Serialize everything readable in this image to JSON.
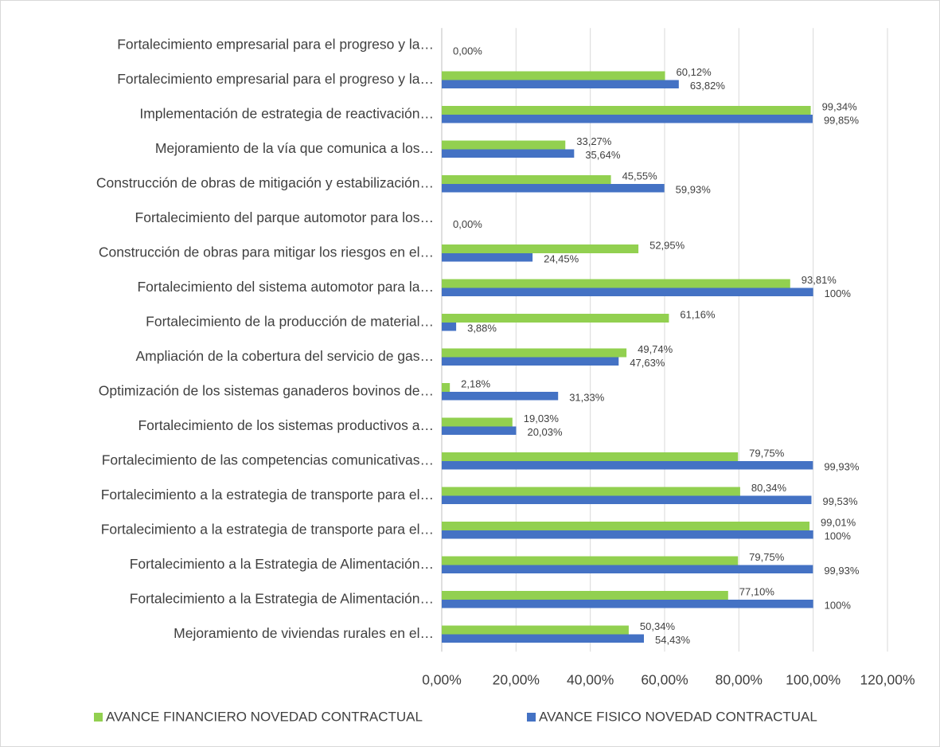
{
  "chart_data": {
    "type": "barh",
    "categories": [
      "Fortalecimiento empresarial para el progreso y la…",
      "Fortalecimiento empresarial para el progreso y la…",
      "Implementación de estrategia de reactivación…",
      "Mejoramiento de la vía que comunica a los…",
      "Construcción de obras de mitigación y estabilización…",
      "Fortalecimiento del parque automotor para los…",
      "Construcción de obras para mitigar los riesgos en el…",
      "Fortalecimiento del sistema automotor para la…",
      "Fortalecimiento de la producción de material…",
      "Ampliación de la cobertura del servicio de gas…",
      "Optimización de los sistemas ganaderos bovinos de…",
      "Fortalecimiento de los sistemas productivos a…",
      "Fortalecimiento de las competencias comunicativas…",
      "Fortalecimiento a la estrategia de transporte para el…",
      "Fortalecimiento a la estrategia de transporte para el…",
      "Fortalecimiento a la Estrategia de Alimentación…",
      "Fortalecimiento a la Estrategia de Alimentación…",
      "Mejoramiento de viviendas rurales en el…"
    ],
    "series": [
      {
        "name": "AVANCE FINANCIERO NOVEDAD CONTRACTUAL",
        "color": "#92d050",
        "values": [
          null,
          60.12,
          99.34,
          33.27,
          45.55,
          null,
          52.95,
          93.81,
          61.16,
          49.74,
          2.18,
          19.03,
          79.75,
          80.34,
          99.01,
          79.75,
          77.1,
          50.34
        ],
        "value_labels": [
          null,
          "60,12%",
          "99,34%",
          "33,27%",
          "45,55%",
          null,
          "52,95%",
          "93,81%",
          "61,16%",
          "49,74%",
          "2,18%",
          "19,03%",
          "79,75%",
          "80,34%",
          "99,01%",
          "79,75%",
          "77,10%",
          "50,34%"
        ]
      },
      {
        "name": "AVANCE FISICO NOVEDAD CONTRACTUAL",
        "color": "#4472c4",
        "values": [
          0,
          63.82,
          99.85,
          35.64,
          59.93,
          0,
          24.45,
          100,
          3.88,
          47.63,
          31.33,
          20.03,
          99.93,
          99.53,
          100,
          99.93,
          100,
          54.43
        ],
        "value_labels": [
          "0,00%",
          "63,82%",
          "99,85%",
          "35,64%",
          "59,93%",
          "0,00%",
          "24,45%",
          "100%",
          "3,88%",
          "47,63%",
          "31,33%",
          "20,03%",
          "99,93%",
          "99,53%",
          "100%",
          "99,93%",
          "100%",
          "54,43%"
        ]
      }
    ],
    "xlim": [
      0,
      120
    ],
    "xticks": [
      {
        "value": 0,
        "label": "0,00%"
      },
      {
        "value": 20,
        "label": "20,00%"
      },
      {
        "value": 40,
        "label": "40,00%"
      },
      {
        "value": 60,
        "label": "60,00%"
      },
      {
        "value": 80,
        "label": "80,00%"
      },
      {
        "value": 100,
        "label": "100,00%"
      },
      {
        "value": 120,
        "label": "120,00%"
      }
    ],
    "grid": true,
    "legend": "bottom"
  }
}
